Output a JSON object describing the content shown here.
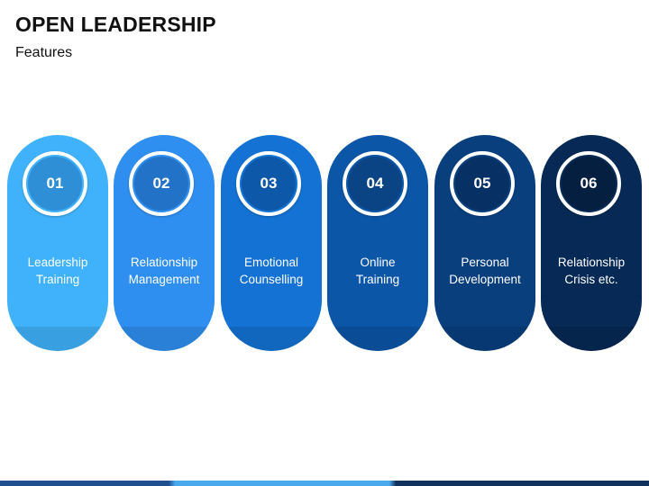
{
  "title": "OPEN LEADERSHIP",
  "subtitle": "Features",
  "cards": [
    {
      "number": "01",
      "label_lines": [
        "Leadership",
        "Training"
      ],
      "color": "#3fb2fb",
      "circle_color": "#2e8fd6"
    },
    {
      "number": "02",
      "label_lines": [
        "Relationship",
        "Management"
      ],
      "color": "#2f8ff0",
      "circle_color": "#2272c7"
    },
    {
      "number": "03",
      "label_lines": [
        "Emotional",
        "Counselling"
      ],
      "color": "#1372d3",
      "circle_color": "#0d58a8"
    },
    {
      "number": "04",
      "label_lines": [
        "Online",
        "Training"
      ],
      "color": "#0c56a8",
      "circle_color": "#0a4485"
    },
    {
      "number": "05",
      "label_lines": [
        "Personal",
        "Development"
      ],
      "color": "#0a3f7e",
      "circle_color": "#073164"
    },
    {
      "number": "06",
      "label_lines": [
        "Relationship",
        "Crisis etc."
      ],
      "color": "#062a55",
      "circle_color": "#041f40"
    }
  ]
}
